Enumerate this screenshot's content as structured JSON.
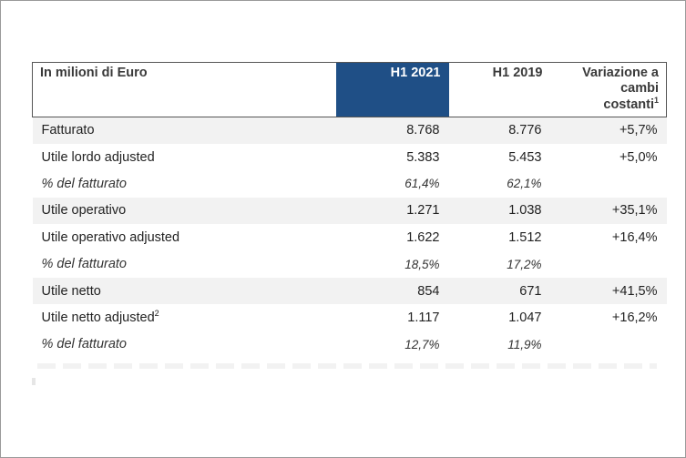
{
  "table": {
    "header": {
      "label": "In milioni di Euro",
      "col1": "H1 2021",
      "col2": "H1 2019",
      "col3_line1": "Variazione a",
      "col3_line2": "cambi",
      "col3_line3": "costanti",
      "col3_sup": "1"
    },
    "rows": [
      {
        "label": "Fatturato",
        "v1": "8.768",
        "v2": "8.776",
        "v3": "+5,7%"
      },
      {
        "label": "Utile lordo adjusted",
        "v1": "5.383",
        "v2": "5.453",
        "v3": "+5,0%"
      },
      {
        "label": "% del fatturato",
        "v1": "61,4%",
        "v2": "62,1%",
        "v3": ""
      },
      {
        "label": "Utile operativo",
        "v1": "1.271",
        "v2": "1.038",
        "v3": "+35,1%"
      },
      {
        "label": "Utile operativo adjusted",
        "v1": "1.622",
        "v2": "1.512",
        "v3": "+16,4%"
      },
      {
        "label": "% del fatturato",
        "v1": "18,5%",
        "v2": "17,2%",
        "v3": ""
      },
      {
        "label": "Utile netto",
        "v1": "854",
        "v2": "671",
        "v3": "+41,5%"
      },
      {
        "label": "Utile netto adjusted",
        "sup": "2",
        "v1": "1.117",
        "v2": "1.047",
        "v3": "+16,2%"
      },
      {
        "label": "% del fatturato",
        "v1": "12,7%",
        "v2": "11,9%",
        "v3": ""
      }
    ]
  },
  "colors": {
    "highlight": "#1f4f86",
    "row_shade": "#f2f2f2"
  }
}
